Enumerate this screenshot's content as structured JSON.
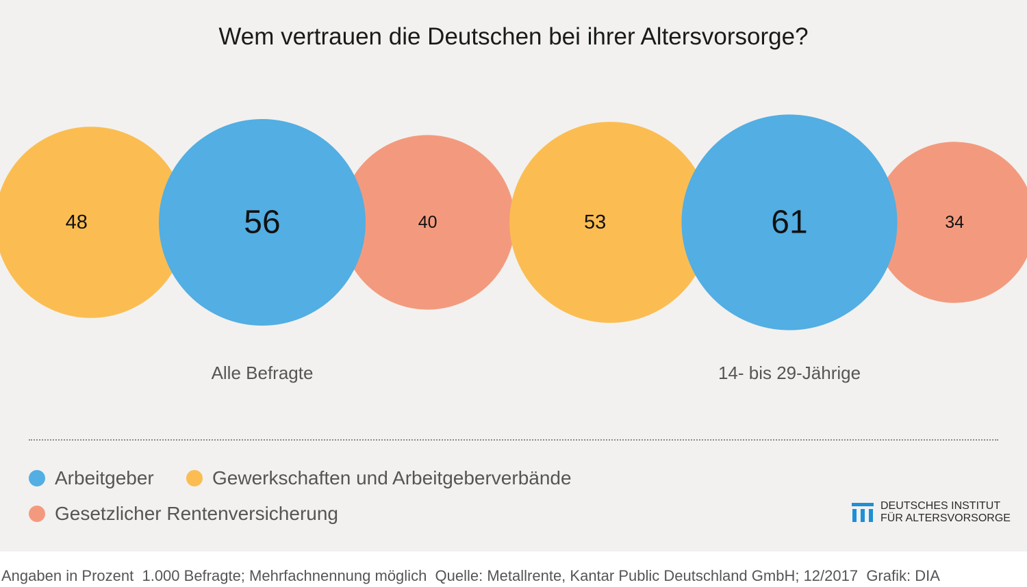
{
  "title": "Wem vertrauen die Deutschen bei ihrer Altersvorsorge?",
  "chart_data": {
    "type": "bubble",
    "title": "Wem vertrauen die Deutschen bei ihrer Altersvorsorge?",
    "unit": "Prozent",
    "series": [
      {
        "name": "Arbeitgeber",
        "color": "#52aee3"
      },
      {
        "name": "Gewerkschaften und Arbeitgeberverbände",
        "color": "#fbbd52"
      },
      {
        "name": "Gesetzlicher Rentenversicherung",
        "color": "#f39a7e"
      }
    ],
    "groups": [
      {
        "label": "Alle Befragte",
        "values": {
          "Arbeitgeber": 56,
          "Gewerkschaften und Arbeitgeberverbände": 48,
          "Gesetzlicher Rentenversicherung": 40
        }
      },
      {
        "label": "14- bis 29-Jährige",
        "values": {
          "Arbeitgeber": 61,
          "Gewerkschaften und Arbeitgeberverbände": 53,
          "Gesetzlicher Rentenversicherung": 34
        }
      }
    ]
  },
  "legend": {
    "items": [
      {
        "label": "Arbeitgeber",
        "color": "#52aee3"
      },
      {
        "label": "Gewerkschaften und Arbeitgeberverbände",
        "color": "#fbbd52"
      },
      {
        "label": "Gesetzlicher Rentenversicherung",
        "color": "#f39a7e"
      }
    ]
  },
  "logo": {
    "line1": "DEUTSCHES INSTITUT",
    "line2": "FÜR ALTERSVORSORGE",
    "color": "#1f8fd6"
  },
  "footer": "Angaben in Prozent  1.000 Befragte; Mehrfachnennung möglich  Quelle: Metallrente, Kantar Public Deutschland GmbH; 12/2017  Grafik: DIA"
}
